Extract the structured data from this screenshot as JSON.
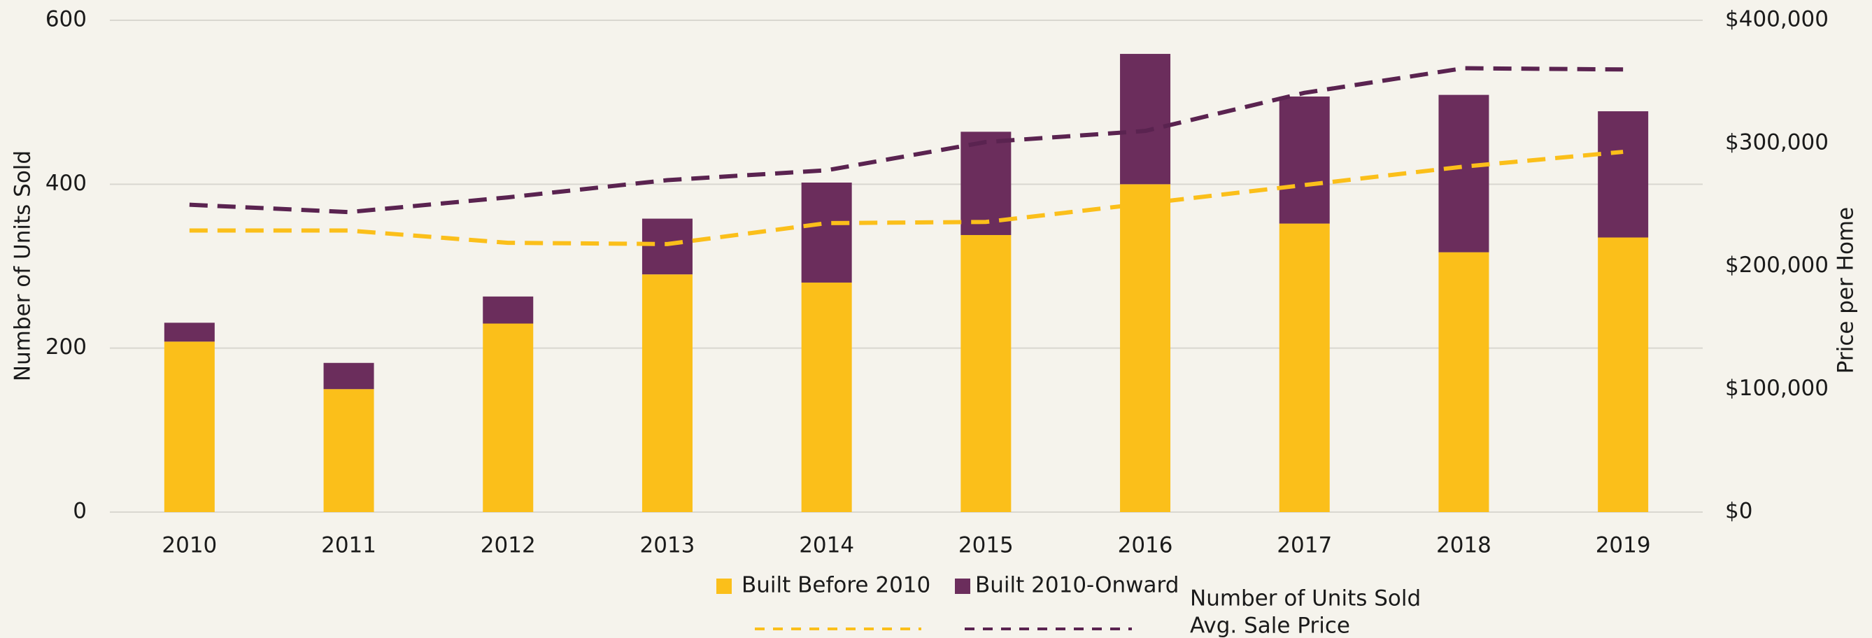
{
  "chart_data": {
    "type": "bar",
    "stacked": true,
    "categories": [
      "2010",
      "2011",
      "2012",
      "2013",
      "2014",
      "2015",
      "2016",
      "2017",
      "2018",
      "2019"
    ],
    "series": [
      {
        "name": "Built Before 2010",
        "color": "#fbbf1a",
        "values": [
          208,
          150,
          230,
          290,
          280,
          338,
          400,
          352,
          317,
          335
        ]
      },
      {
        "name": "Built 2010-Onward",
        "color": "#6b2d5c",
        "values": [
          23,
          32,
          33,
          68,
          122,
          126,
          159,
          155,
          192,
          154
        ]
      },
      {
        "name": "Number of Units Sold",
        "type": "line",
        "axis": "y2",
        "dashed": true,
        "color": "#fbbf1a",
        "values": [
          229000,
          229000,
          219000,
          218000,
          235000,
          236000,
          251000,
          266000,
          281000,
          293000
        ]
      },
      {
        "name": "Avg. Sale Price",
        "type": "line",
        "axis": "y2",
        "dashed": true,
        "color": "#5a2350",
        "values": [
          250000,
          244000,
          256000,
          270000,
          278000,
          301000,
          310000,
          341000,
          361000,
          360000
        ]
      }
    ],
    "ylabel": "Number of Units Sold",
    "y2label": "Price per Home",
    "ylim": [
      0,
      600
    ],
    "yticks": [
      0,
      200,
      400,
      600
    ],
    "y2lim": [
      0,
      400000
    ],
    "y2ticks": [
      {
        "value": 0,
        "label": "$0"
      },
      {
        "value": 100000,
        "label": "$100,000"
      },
      {
        "value": 200000,
        "label": "$200,000"
      },
      {
        "value": 300000,
        "label": "$300,000"
      },
      {
        "value": 400000,
        "label": "$400,000"
      }
    ],
    "grid": true,
    "legend": "bottom"
  }
}
